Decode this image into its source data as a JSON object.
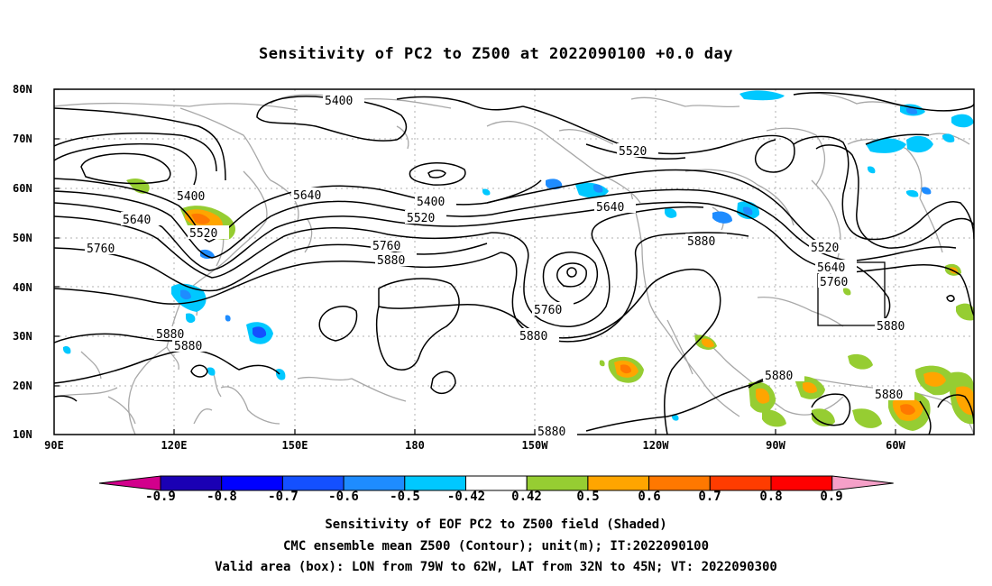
{
  "title": "Sensitivity of PC2 to Z500 at 2022090100 +0.0 day",
  "lat_labels": [
    "80N",
    "70N",
    "60N",
    "50N",
    "40N",
    "30N",
    "20N",
    "10N"
  ],
  "lon_labels": [
    "90E",
    "120E",
    "150E",
    "180",
    "150W",
    "120W",
    "90W",
    "60W"
  ],
  "contour_labels": {
    "c5400_top": "5400",
    "c5520_a": "5520",
    "c5400_w": "5400",
    "c5640_w": "5640",
    "c5640_w2": "5640",
    "c5520_w": "5520",
    "c5760_w": "5760",
    "c5400_c": "5400",
    "c5520_c": "5520",
    "c5760_c": "5760",
    "c5880_c": "5880",
    "c5640_e": "5640",
    "c5760_e2": "5760",
    "c5880_e": "5880",
    "c5880_f": "5880",
    "c5520_ne": "5520",
    "c5640_ne": "5640",
    "c5760_ne": "5760",
    "c5880_ne": "5880",
    "c5880_sw1": "5880",
    "c5880_sw2": "5880",
    "c5880_car1": "5880",
    "c5880_car2": "5880",
    "c5880_bot": "5880"
  },
  "colorbar": {
    "labels": [
      "-0.9",
      "-0.8",
      "-0.7",
      "-0.6",
      "-0.5",
      "-0.42",
      "0.42",
      "0.5",
      "0.6",
      "0.7",
      "0.8",
      "0.9"
    ],
    "colors": [
      "#1a00b4",
      "#0000ff",
      "#1450ff",
      "#1e8cff",
      "#00c8ff",
      "#ffffff",
      "#96cd32",
      "#ffa500",
      "#ff7800",
      "#ff3c00",
      "#ff0000"
    ],
    "left_arrow_color": "#d2008c",
    "right_arrow_color": "#f5a0c8"
  },
  "footer": {
    "line1": "Sensitivity of EOF PC2 to Z500 field (Shaded)",
    "line2": "CMC ensemble mean Z500 (Contour); unit(m); IT:2022090100",
    "line3": "Valid area (box): LON from 79W to 62W, LAT from 32N to 45N; VT: 2022090300"
  }
}
